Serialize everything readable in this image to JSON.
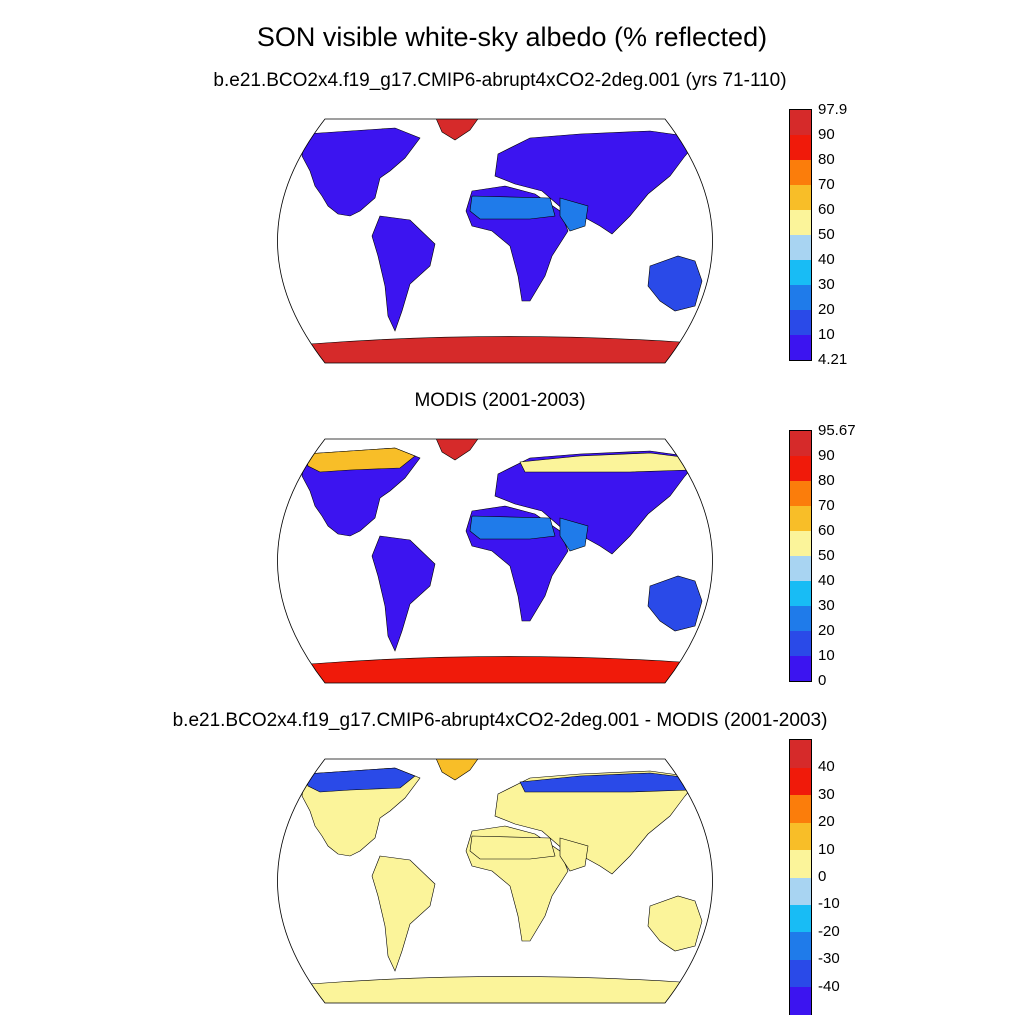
{
  "figure": {
    "title": "SON visible white-sky albedo (% reflected)"
  },
  "palette": {
    "albedo_colors": [
      "#3c14f0",
      "#2a4ae8",
      "#1f7bea",
      "#18bcf5",
      "#a8d4f2",
      "#fbf49a",
      "#f8be28",
      "#fb7d0b",
      "#f01a0a",
      "#d62a2a"
    ],
    "diff_colors": [
      "#3c14f0",
      "#2a4ae8",
      "#1f7bea",
      "#18bcf5",
      "#a8d4f2",
      "#fbf49a",
      "#f8be28",
      "#fb7d0b",
      "#f01a0a",
      "#d62a2a"
    ],
    "coast": "#000000"
  },
  "panels": [
    {
      "title": "b.e21.BCO2x4.f19_g17.CMIP6-abrupt4xCO2-2deg.001 (yrs 71-110)",
      "colorbar_labels": [
        "97.9",
        "90",
        "80",
        "70",
        "60",
        "50",
        "40",
        "30",
        "20",
        "10",
        "4.21"
      ],
      "regions": [
        {
          "name": "north-america",
          "level": 0
        },
        {
          "name": "greenland",
          "level": 9
        },
        {
          "name": "south-america",
          "level": 0
        },
        {
          "name": "africa",
          "level": 0
        },
        {
          "name": "sahara",
          "level": 2
        },
        {
          "name": "eurasia",
          "level": 0
        },
        {
          "name": "arabia",
          "level": 2
        },
        {
          "name": "australia",
          "level": 1
        },
        {
          "name": "antarctica",
          "level": 9
        }
      ]
    },
    {
      "title": "MODIS (2001-2003)",
      "colorbar_labels": [
        "95.67",
        "90",
        "80",
        "70",
        "60",
        "50",
        "40",
        "30",
        "20",
        "10",
        "0"
      ],
      "regions": [
        {
          "name": "north-america",
          "level": 0
        },
        {
          "name": "north-america-arctic",
          "level": 6
        },
        {
          "name": "greenland",
          "level": 9
        },
        {
          "name": "south-america",
          "level": 0
        },
        {
          "name": "africa",
          "level": 0
        },
        {
          "name": "sahara",
          "level": 2
        },
        {
          "name": "eurasia",
          "level": 0
        },
        {
          "name": "siberia",
          "level": 5
        },
        {
          "name": "arabia",
          "level": 2
        },
        {
          "name": "australia",
          "level": 1
        },
        {
          "name": "antarctica",
          "level": 8
        }
      ]
    },
    {
      "title": "b.e21.BCO2x4.f19_g17.CMIP6-abrupt4xCO2-2deg.001 - MODIS (2001-2003)",
      "colorbar_labels": [
        "",
        "40",
        "30",
        "20",
        "10",
        "0",
        "-10",
        "-20",
        "-30",
        "-40",
        ""
      ],
      "regions": [
        {
          "name": "north-america",
          "level": 5
        },
        {
          "name": "north-america-arctic",
          "level": 1
        },
        {
          "name": "greenland",
          "level": 6
        },
        {
          "name": "south-america",
          "level": 5
        },
        {
          "name": "africa",
          "level": 5
        },
        {
          "name": "sahara",
          "level": 5
        },
        {
          "name": "eurasia",
          "level": 5
        },
        {
          "name": "siberia",
          "level": 1
        },
        {
          "name": "arabia",
          "level": 5
        },
        {
          "name": "australia",
          "level": 5
        },
        {
          "name": "antarctica",
          "level": 5
        }
      ]
    }
  ]
}
